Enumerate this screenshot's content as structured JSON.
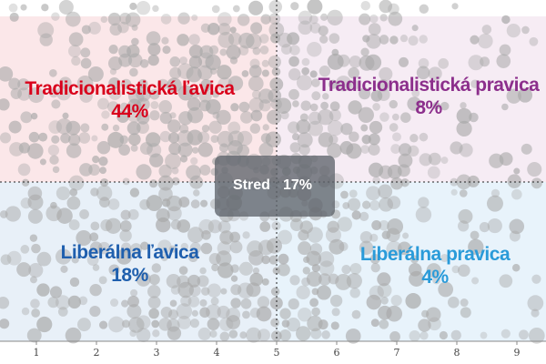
{
  "chart_data": {
    "type": "scatter",
    "x_ticks": [
      1,
      2,
      3,
      4,
      5,
      6,
      7,
      8,
      9
    ],
    "xlim": [
      0.6,
      9.5
    ],
    "divider_x": 5,
    "quadrants": [
      {
        "name": "Tradicionalistická ľavica",
        "value": "44%",
        "color": "#d9001b",
        "bg": "#fbe7e9"
      },
      {
        "name": "Tradicionalistická pravica",
        "value": "8%",
        "color": "#8c2f8c",
        "bg": "#f6ecf4"
      },
      {
        "name": "Liberálna ľavica",
        "value": "18%",
        "color": "#1f5fae",
        "bg": "#e8f0f8"
      },
      {
        "name": "Liberálna pravica",
        "value": "4%",
        "color": "#2a9bd9",
        "bg": "#e8f3fb"
      }
    ],
    "center": {
      "name": "Stred",
      "value": "17%"
    },
    "point_color": "#a8a8a8"
  }
}
